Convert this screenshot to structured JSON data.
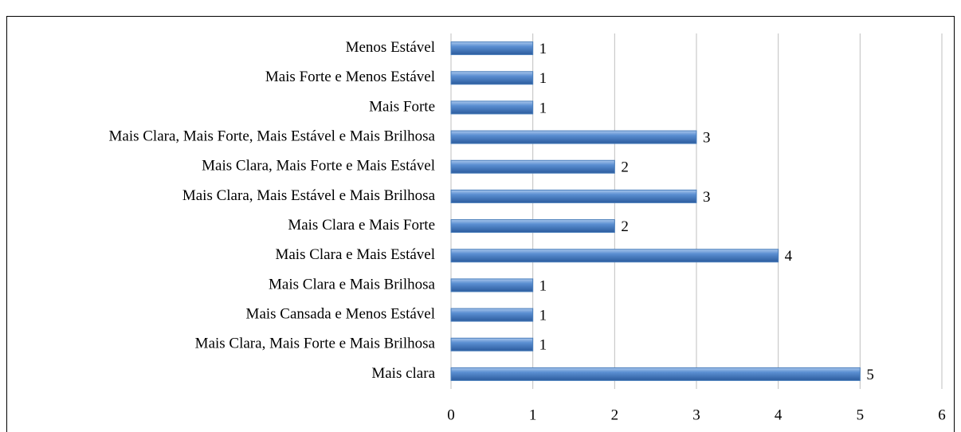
{
  "chart_data": {
    "type": "bar",
    "orientation": "horizontal",
    "categories": [
      "Menos Estável",
      "Mais Forte e Menos Estável",
      "Mais Forte",
      "Mais Clara, Mais Forte, Mais Estável e Mais Brilhosa",
      "Mais Clara, Mais Forte e Mais Estável",
      "Mais Clara, Mais Estável e Mais Brilhosa",
      "Mais Clara e Mais Forte",
      "Mais Clara e Mais Estável",
      "Mais Clara e Mais Brilhosa",
      "Mais Cansada e Menos Estável",
      "Mais Clara, Mais Forte e Mais Brilhosa",
      "Mais clara"
    ],
    "values": [
      1,
      1,
      1,
      3,
      2,
      3,
      2,
      4,
      1,
      1,
      1,
      5
    ],
    "color": "#4a7ebb",
    "xlim": [
      0,
      6
    ],
    "xticks": [
      0,
      1,
      2,
      3,
      4,
      5,
      6
    ],
    "grid": true
  }
}
